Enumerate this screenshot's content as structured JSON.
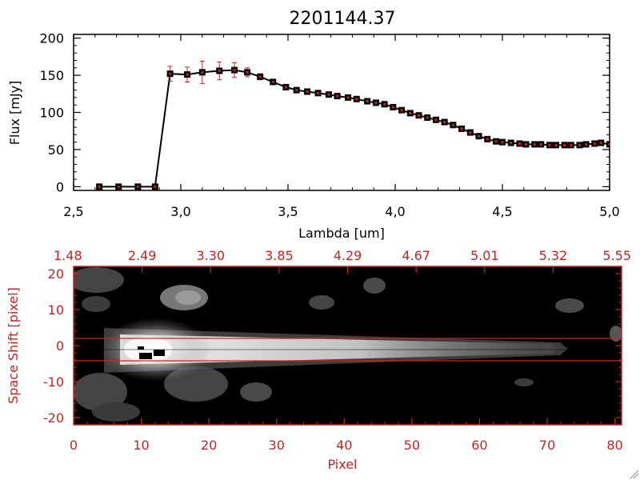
{
  "colors": {
    "primary": "#000000",
    "accent": "#cc2222",
    "errorbar": "#cc2222",
    "background": "#ffffff"
  },
  "chart_data": [
    {
      "type": "line",
      "title": "2201144.37",
      "xlabel": "Lambda [um]",
      "ylabel": "Flux [mJy]",
      "xlim": [
        2.5,
        5.0
      ],
      "ylim": [
        -5,
        205
      ],
      "x_ticks": [
        "2.5",
        "3.0",
        "3.5",
        "4.0",
        "4.5",
        "5.0"
      ],
      "y_ticks": [
        "0",
        "50",
        "100",
        "150",
        "200"
      ],
      "series": [
        {
          "x": [
            2.62,
            2.71,
            2.8,
            2.88,
            2.95,
            3.03,
            3.1,
            3.18,
            3.25,
            3.31,
            3.37,
            3.43,
            3.49,
            3.54,
            3.59,
            3.64,
            3.69,
            3.73,
            3.78,
            3.82,
            3.87,
            3.91,
            3.95,
            3.99,
            4.03,
            4.07,
            4.11,
            4.15,
            4.19,
            4.23,
            4.27,
            4.31,
            4.35,
            4.39,
            4.43,
            4.47,
            4.5,
            4.54,
            4.58,
            4.61,
            4.65,
            4.68,
            4.72,
            4.75,
            4.79,
            4.82,
            4.86,
            4.89,
            4.93,
            4.96,
            5.0
          ],
          "y": [
            0,
            0,
            0,
            0,
            152,
            151,
            154,
            156,
            157,
            154,
            148,
            141,
            134,
            130,
            128,
            126,
            124,
            122,
            120,
            118,
            115,
            113,
            111,
            107,
            103,
            99,
            96,
            93,
            90,
            87,
            83,
            78,
            73,
            68,
            64,
            61,
            60,
            59,
            58,
            57,
            57,
            57,
            56,
            56,
            56,
            56,
            56,
            57,
            58,
            59,
            57
          ],
          "err": [
            0,
            0,
            0,
            0,
            10,
            10,
            15,
            12,
            10,
            6,
            4,
            3,
            3,
            2,
            2,
            2,
            2,
            2,
            2,
            2,
            2,
            2,
            2,
            2,
            2,
            2,
            2,
            2,
            2,
            2,
            2,
            2,
            2,
            2,
            2,
            2,
            2,
            2,
            2,
            2,
            2,
            2,
            2,
            2,
            2,
            2,
            2,
            2,
            2,
            2,
            2
          ]
        }
      ]
    },
    {
      "type": "heatmap",
      "xlabel": "Pixel",
      "ylabel": "Space Shift [pixel]",
      "xlim": [
        0,
        81
      ],
      "ylim": [
        -22,
        22
      ],
      "x_ticks": [
        "0",
        "10",
        "20",
        "30",
        "40",
        "50",
        "60",
        "70",
        "80"
      ],
      "y_ticks": [
        "-20",
        "-10",
        "0",
        "10",
        "20"
      ],
      "top_ticks": [
        "1.48",
        "2.49",
        "3.30",
        "3.85",
        "4.29",
        "4.67",
        "5.01",
        "5.32",
        "5.55"
      ],
      "extraction_band": [
        -3,
        3
      ]
    }
  ]
}
